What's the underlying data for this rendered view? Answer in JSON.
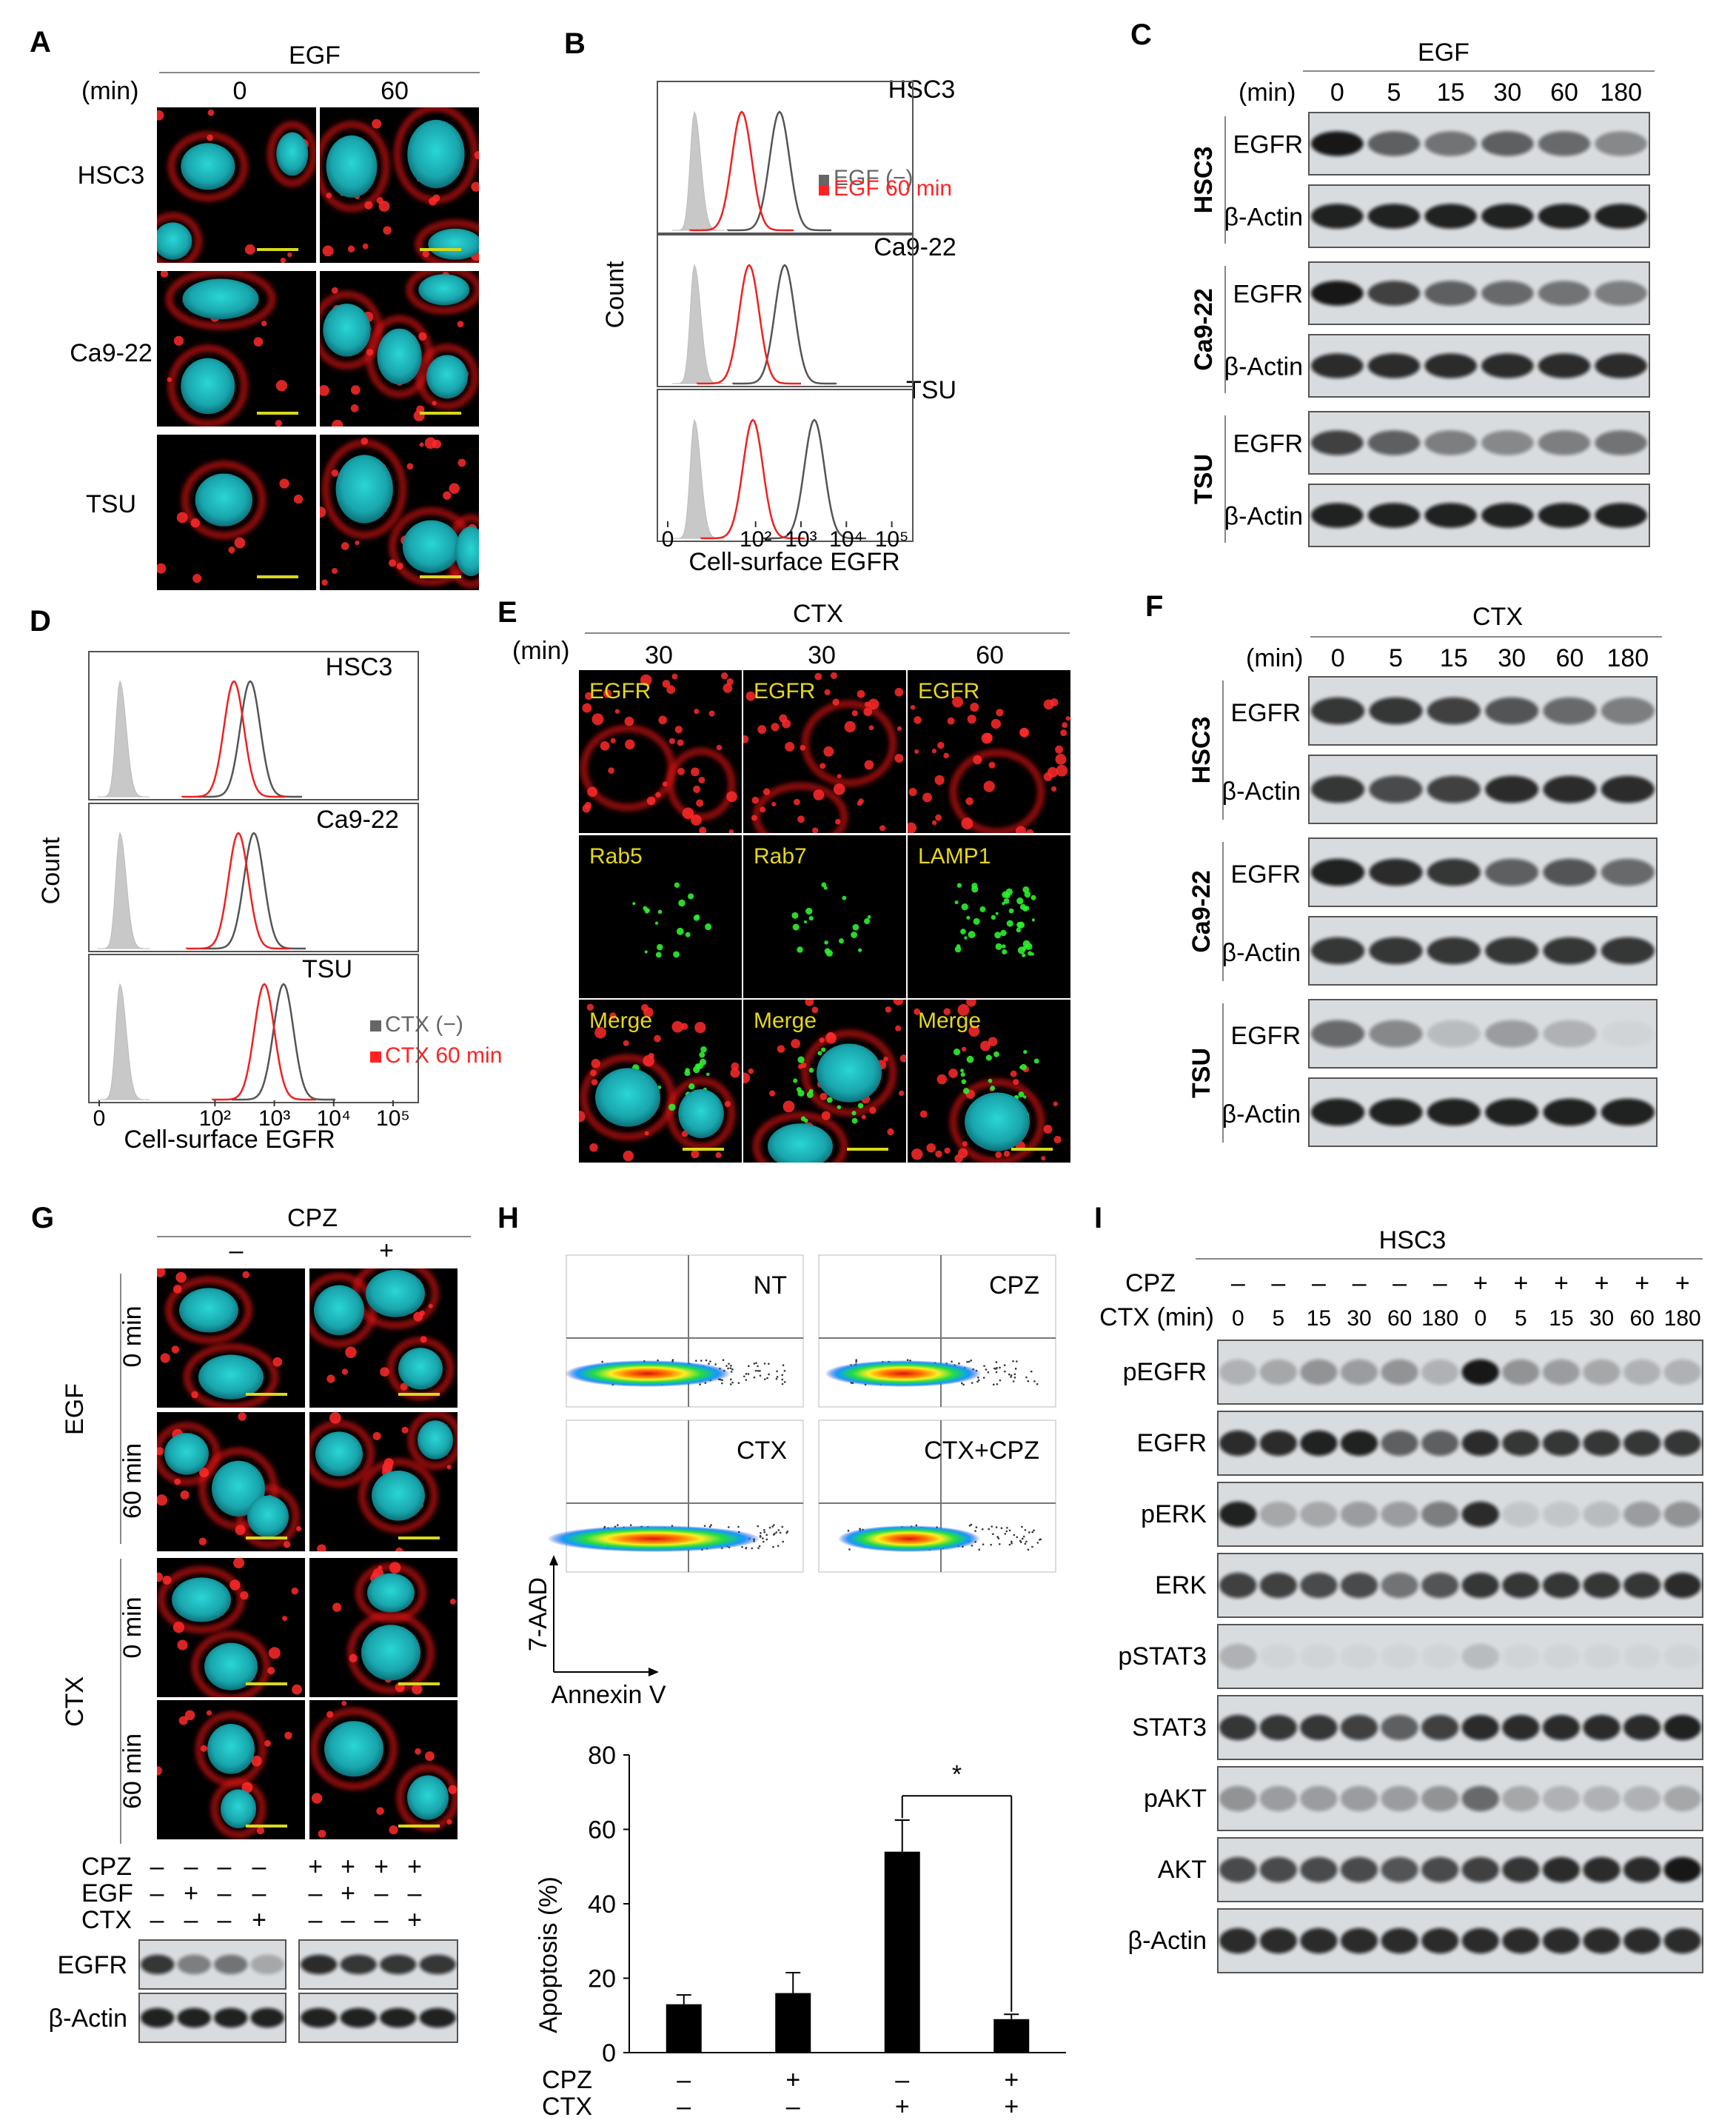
{
  "A": {
    "letter": "A",
    "header": "EGF",
    "time_unit": "(min)",
    "cols": [
      "0",
      "60"
    ],
    "rows": [
      "HSC3",
      "Ca9-22",
      "TSU"
    ]
  },
  "B": {
    "letter": "B",
    "ylabel": "Count",
    "xlabel": "Cell-surface EGFR",
    "panels": [
      "HSC3",
      "Ca9-22",
      "TSU"
    ],
    "legend": [
      {
        "label": "EGF (−)",
        "color": "#666666"
      },
      {
        "label": "EGF 60 min",
        "color": "#ff1a1a"
      }
    ],
    "ticks": [
      "0",
      "10²",
      "10³",
      "10⁴",
      "10⁵"
    ]
  },
  "C": {
    "letter": "C",
    "header": "EGF",
    "time_unit": "(min)",
    "lanes": [
      "0",
      "5",
      "15",
      "30",
      "60",
      "180"
    ],
    "groups": [
      {
        "cell": "HSC3",
        "bands": [
          "EGFR",
          "β-Actin"
        ]
      },
      {
        "cell": "Ca9-22",
        "bands": [
          "EGFR",
          "β-Actin"
        ]
      },
      {
        "cell": "TSU",
        "bands": [
          "EGFR",
          "β-Actin"
        ]
      }
    ]
  },
  "D": {
    "letter": "D",
    "ylabel": "Count",
    "xlabel": "Cell-surface EGFR",
    "panels": [
      "HSC3",
      "Ca9-22",
      "TSU"
    ],
    "legend": [
      {
        "label": "CTX (−)",
        "color": "#666666"
      },
      {
        "label": "CTX 60 min",
        "color": "#ff1a1a"
      }
    ],
    "ticks": [
      "0",
      "10²",
      "10³",
      "10⁴",
      "10⁵"
    ]
  },
  "E": {
    "letter": "E",
    "header": "CTX",
    "time_unit": "(min)",
    "cols": [
      "30",
      "30",
      "60"
    ],
    "row1": [
      "EGFR",
      "EGFR",
      "EGFR"
    ],
    "row2": [
      "Rab5",
      "Rab7",
      "LAMP1"
    ],
    "row3": [
      "Merge",
      "Merge",
      "Merge"
    ]
  },
  "F": {
    "letter": "F",
    "header": "CTX",
    "time_unit": "(min)",
    "lanes": [
      "0",
      "5",
      "15",
      "30",
      "60",
      "180"
    ],
    "groups": [
      {
        "cell": "HSC3",
        "bands": [
          "EGFR",
          "β-Actin"
        ]
      },
      {
        "cell": "Ca9-22",
        "bands": [
          "EGFR",
          "β-Actin"
        ]
      },
      {
        "cell": "TSU",
        "bands": [
          "EGFR",
          "β-Actin"
        ]
      }
    ]
  },
  "G": {
    "letter": "G",
    "header": "CPZ",
    "cols": [
      "–",
      "+"
    ],
    "groups": [
      "EGF",
      "CTX"
    ],
    "times": [
      "0 min",
      "60 min"
    ],
    "treat_rows": [
      {
        "label": "CPZ",
        "signs": [
          "–",
          "–",
          "–",
          "–",
          "+",
          "+",
          "+",
          "+"
        ]
      },
      {
        "label": "EGF",
        "signs": [
          "–",
          "+",
          "–",
          "–",
          "–",
          "+",
          "–",
          "–"
        ]
      },
      {
        "label": "CTX",
        "signs": [
          "–",
          "–",
          "–",
          "+",
          "–",
          "–",
          "–",
          "+"
        ]
      }
    ],
    "bands": [
      "EGFR",
      "β-Actin"
    ]
  },
  "H": {
    "letter": "H",
    "plots": [
      "NT",
      "CPZ",
      "CTX",
      "CTX+CPZ"
    ],
    "y_axis_label": "7-AAD",
    "x_axis_label": "Annexin V",
    "chart_data": {
      "type": "bar",
      "categories": [
        "NT",
        "CPZ",
        "CTX",
        "CTX+CPZ"
      ],
      "values": [
        13,
        16,
        54,
        9
      ],
      "errors": [
        2.5,
        5.5,
        8.5,
        1.3
      ],
      "ylabel": "Apoptosis (%)",
      "ylim": [
        0,
        80
      ],
      "yticks": [
        "0",
        "20",
        "40",
        "60",
        "80"
      ],
      "treatments": [
        {
          "label": "CPZ",
          "signs": [
            "–",
            "+",
            "–",
            "+"
          ]
        },
        {
          "label": "CTX",
          "signs": [
            "–",
            "–",
            "+",
            "+"
          ]
        }
      ],
      "significance": "*"
    }
  },
  "I": {
    "letter": "I",
    "header": "HSC3",
    "cpz": {
      "label": "CPZ",
      "signs": [
        "–",
        "–",
        "–",
        "–",
        "–",
        "–",
        "+",
        "+",
        "+",
        "+",
        "+",
        "+"
      ]
    },
    "ctx": {
      "label": "CTX (min)",
      "lanes": [
        "0",
        "5",
        "15",
        "30",
        "60",
        "180",
        "0",
        "5",
        "15",
        "30",
        "60",
        "180"
      ]
    },
    "bands": [
      "pEGFR",
      "EGFR",
      "pERK",
      "ERK",
      "pSTAT3",
      "STAT3",
      "pAKT",
      "AKT",
      "β-Actin"
    ]
  }
}
